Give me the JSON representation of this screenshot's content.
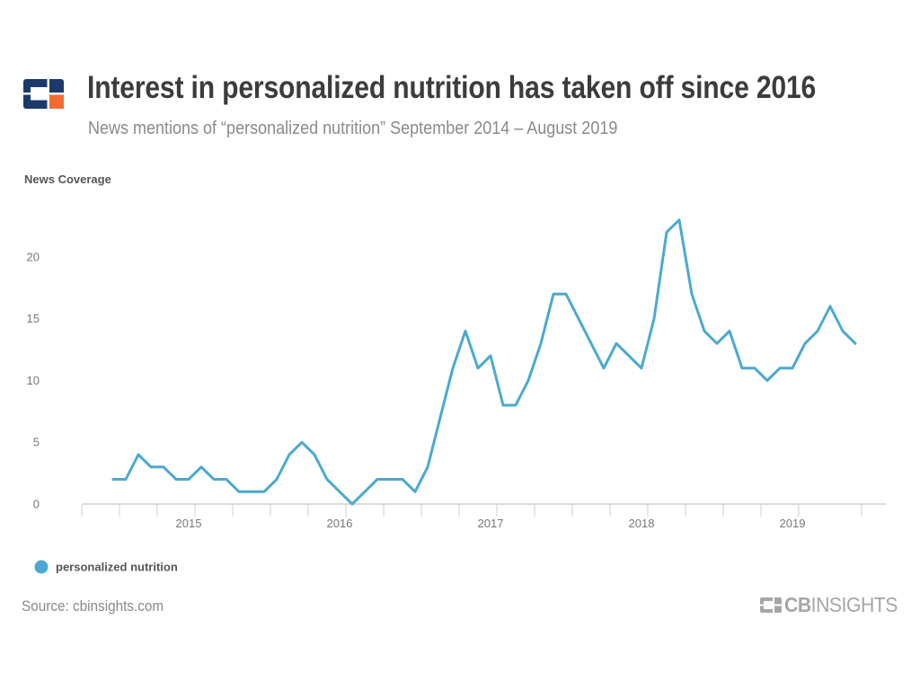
{
  "header": {
    "title": "Interest in personalized nutrition has taken off since 2016",
    "subtitle": "News mentions of “personalized nutrition” September 2014 – August 2019"
  },
  "footer": {
    "source": "Source: cbinsights.com",
    "brand_bold": "CB",
    "brand_rest": "INSIGHTS"
  },
  "colors": {
    "series_line": "#4ba9d1",
    "logo_navy": "#1b3a6b",
    "logo_orange": "#f26b32",
    "text_dark": "#3c3c3c",
    "text_gray": "#8a8a8a"
  },
  "chart_data": {
    "type": "line",
    "ylabel": "News Coverage",
    "xlabel": "",
    "ylim": [
      0,
      25
    ],
    "yticks": [
      0,
      5,
      10,
      15,
      20
    ],
    "year_labels": [
      "2015",
      "2016",
      "2017",
      "2018",
      "2019"
    ],
    "x_start": "2014-09",
    "x_end": "2019-08",
    "x_months": [
      "2014-09",
      "2014-10",
      "2014-11",
      "2014-12",
      "2015-01",
      "2015-02",
      "2015-03",
      "2015-04",
      "2015-05",
      "2015-06",
      "2015-07",
      "2015-08",
      "2015-09",
      "2015-10",
      "2015-11",
      "2015-12",
      "2016-01",
      "2016-02",
      "2016-03",
      "2016-04",
      "2016-05",
      "2016-06",
      "2016-07",
      "2016-08",
      "2016-09",
      "2016-10",
      "2016-11",
      "2016-12",
      "2017-01",
      "2017-02",
      "2017-03",
      "2017-04",
      "2017-05",
      "2017-06",
      "2017-07",
      "2017-08",
      "2017-09",
      "2017-10",
      "2017-11",
      "2017-12",
      "2018-01",
      "2018-02",
      "2018-03",
      "2018-04",
      "2018-05",
      "2018-06",
      "2018-07",
      "2018-08",
      "2018-09",
      "2018-10",
      "2018-11",
      "2018-12",
      "2019-01",
      "2019-02",
      "2019-03",
      "2019-04",
      "2019-05",
      "2019-06",
      "2019-07",
      "2019-08"
    ],
    "series": [
      {
        "name": "personalized nutrition",
        "values": [
          2,
          2,
          4,
          3,
          3,
          2,
          2,
          3,
          2,
          2,
          1,
          1,
          1,
          2,
          4,
          5,
          4,
          2,
          1,
          0,
          1,
          2,
          2,
          2,
          1,
          3,
          7,
          11,
          14,
          11,
          12,
          8,
          8,
          10,
          13,
          17,
          17,
          15,
          13,
          11,
          13,
          12,
          11,
          15,
          22,
          23,
          17,
          14,
          13,
          14,
          11,
          11,
          10,
          11,
          11,
          13,
          14,
          16,
          14,
          13
        ]
      }
    ],
    "legend_position": "bottom-left",
    "grid": false
  }
}
